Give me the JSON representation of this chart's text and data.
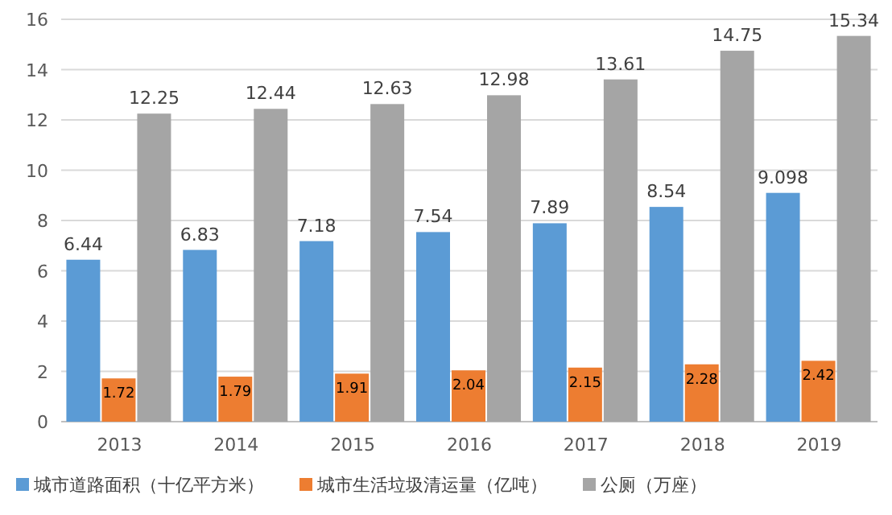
{
  "chart_data": {
    "type": "bar",
    "categories": [
      "2013",
      "2014",
      "2015",
      "2016",
      "2017",
      "2018",
      "2019"
    ],
    "series": [
      {
        "name": "城市道路面积（十亿平方米）",
        "color": "#5b9bd5",
        "values": [
          6.44,
          6.83,
          7.18,
          7.54,
          7.89,
          8.54,
          9.098
        ]
      },
      {
        "name": "城市生活垃圾清运量（亿吨）",
        "color": "#ed7d31",
        "values": [
          1.72,
          1.79,
          1.91,
          2.04,
          2.15,
          2.28,
          2.42
        ]
      },
      {
        "name": "公厕（万座）",
        "color": "#a5a5a5",
        "values": [
          12.25,
          12.44,
          12.63,
          12.98,
          13.61,
          14.75,
          15.34
        ]
      }
    ],
    "ylim": [
      0,
      16
    ],
    "yticks": [
      0,
      2,
      4,
      6,
      8,
      10,
      12,
      14,
      16
    ],
    "grid": "y",
    "legend": "bottom",
    "data_labels": true
  }
}
